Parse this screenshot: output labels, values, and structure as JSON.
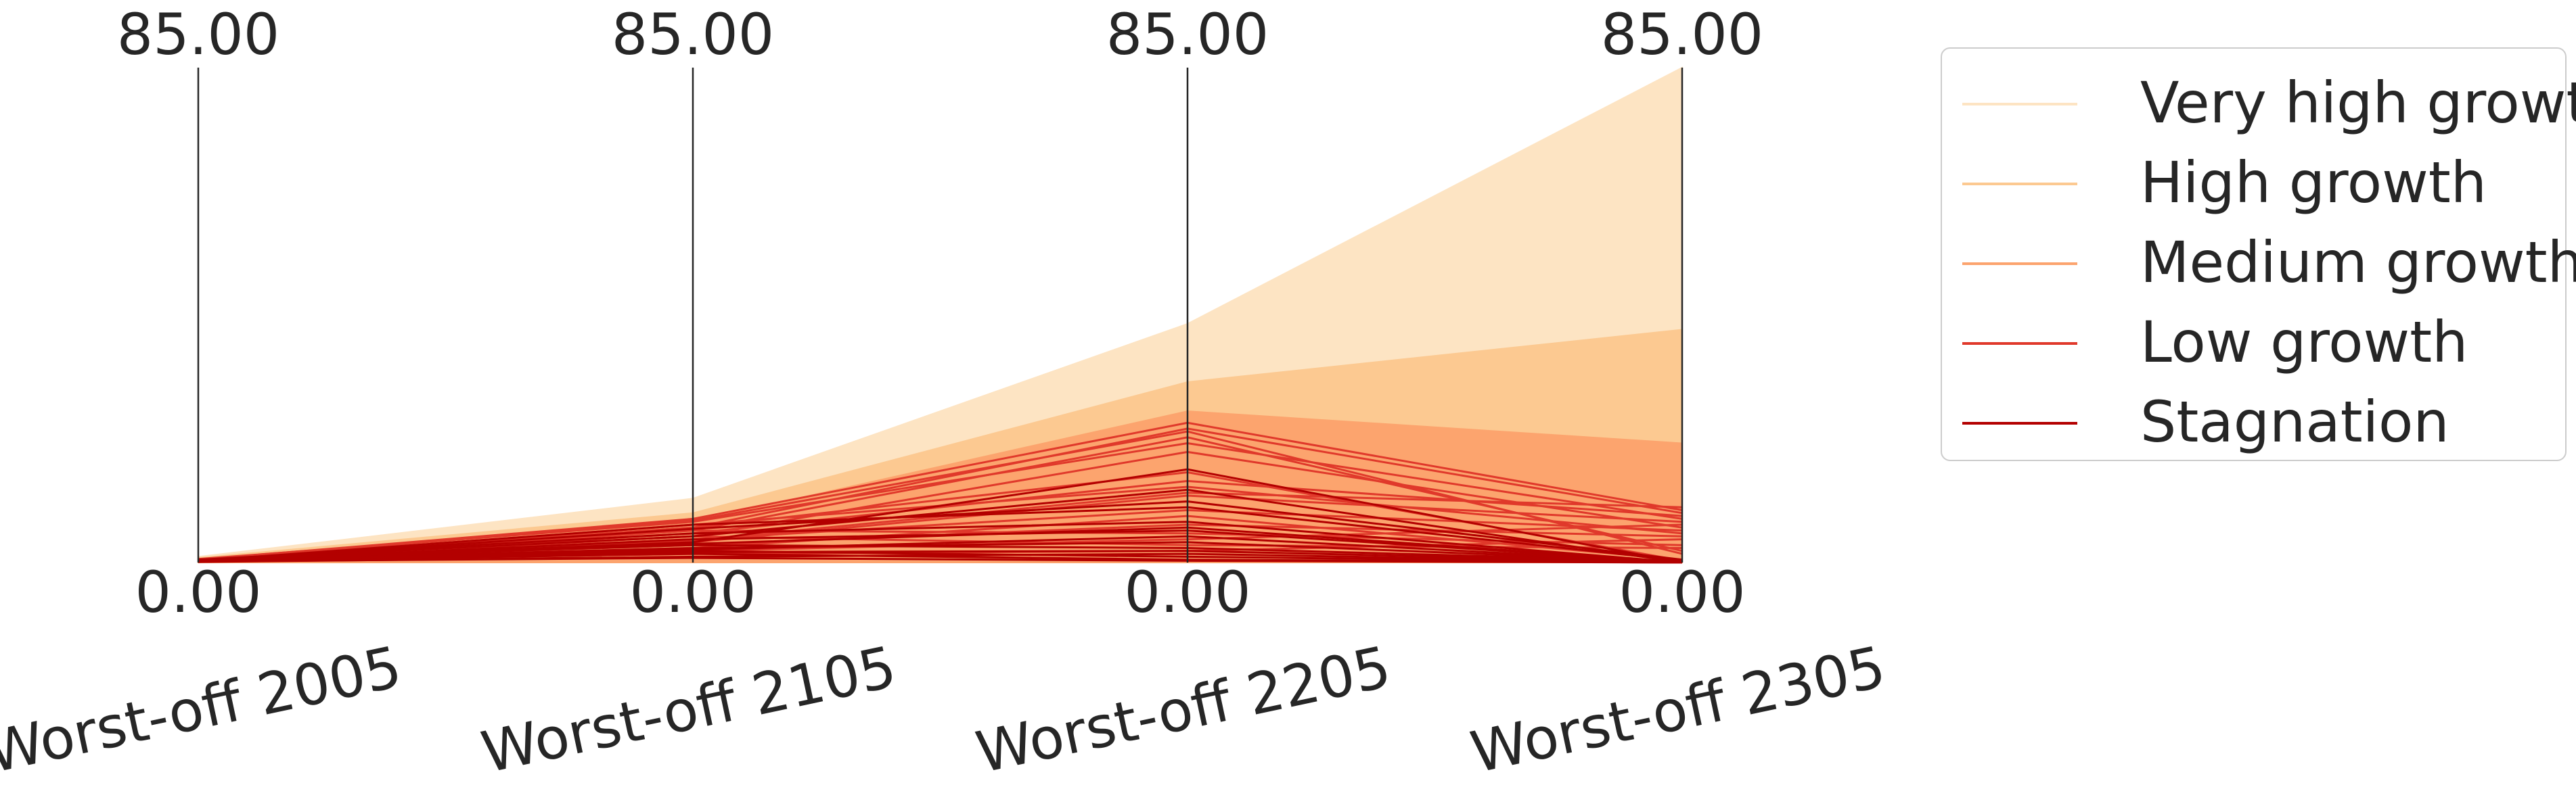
{
  "chart_data": {
    "type": "parallel_coordinates",
    "title": "",
    "axes": [
      {
        "label": "Worst-off 2005",
        "range": [
          0,
          85
        ],
        "top_tick": "85.00",
        "bottom_tick": "0.00"
      },
      {
        "label": "Worst-off 2105",
        "range": [
          0,
          85
        ],
        "top_tick": "85.00",
        "bottom_tick": "0.00"
      },
      {
        "label": "Worst-off 2205",
        "range": [
          0,
          85
        ],
        "top_tick": "85.00",
        "bottom_tick": "0.00"
      },
      {
        "label": "Worst-off 2305",
        "range": [
          0,
          85
        ],
        "top_tick": "85.00",
        "bottom_tick": "0.00"
      }
    ],
    "legend": {
      "placement": "outside-right",
      "entries": [
        {
          "label": "Very high growth",
          "color": "#fde4c3"
        },
        {
          "label": "High growth",
          "color": "#fcc991"
        },
        {
          "label": "Medium growth",
          "color": "#fca46e"
        },
        {
          "label": "Low growth",
          "color": "#e0392b"
        },
        {
          "label": "Stagnation",
          "color": "#b30000"
        }
      ]
    },
    "series": [
      {
        "name": "Very high growth",
        "color": "#fde4c3",
        "band_upper": [
          1.0,
          11.0,
          41.0,
          85.0
        ],
        "band_lower": [
          0,
          0,
          0,
          0
        ]
      },
      {
        "name": "High growth",
        "color": "#fcc991",
        "band_upper": [
          0.8,
          8.5,
          31.0,
          40.0
        ],
        "band_lower": [
          0,
          0,
          0,
          0
        ]
      },
      {
        "name": "Medium growth",
        "color": "#fca46e",
        "band_upper": [
          0.6,
          7.0,
          26.0,
          20.5
        ],
        "band_lower": [
          0,
          0,
          0,
          0
        ]
      },
      {
        "name": "Low growth",
        "color": "#e0392b",
        "lines": [
          [
            0.5,
            7.5,
            24.0,
            9.0
          ],
          [
            0.4,
            6.0,
            23.0,
            8.5
          ],
          [
            0.3,
            5.5,
            21.5,
            2.0
          ],
          [
            0.6,
            7.0,
            20.5,
            7.5
          ],
          [
            0.4,
            4.5,
            19.0,
            6.0
          ],
          [
            0.2,
            5.0,
            14.0,
            8.0
          ],
          [
            0.3,
            6.5,
            13.0,
            5.0
          ],
          [
            0.5,
            3.5,
            11.5,
            7.0
          ],
          [
            0.4,
            4.0,
            9.0,
            5.5
          ],
          [
            0.2,
            2.5,
            8.0,
            0.5
          ],
          [
            0.3,
            3.0,
            6.5,
            4.5
          ],
          [
            0.1,
            5.5,
            5.0,
            3.0
          ],
          [
            0.4,
            2.0,
            4.0,
            6.5
          ],
          [
            0.3,
            4.5,
            3.0,
            2.5
          ],
          [
            0.2,
            1.5,
            2.0,
            4.0
          ],
          [
            0.5,
            6.0,
            15.5,
            0.3
          ],
          [
            0.4,
            7.2,
            22.5,
            1.5
          ],
          [
            0.3,
            3.8,
            12.0,
            9.5
          ]
        ]
      },
      {
        "name": "Stagnation",
        "color": "#b30000",
        "lines": [
          [
            0.3,
            2.0,
            1.0,
            0.0
          ],
          [
            0.2,
            1.5,
            0.5,
            0.0
          ],
          [
            0.4,
            3.0,
            2.5,
            0.2
          ],
          [
            0.1,
            1.0,
            1.5,
            0.0
          ],
          [
            0.3,
            2.5,
            3.5,
            0.1
          ],
          [
            0.2,
            4.0,
            5.5,
            0.0
          ],
          [
            0.5,
            5.0,
            7.0,
            0.0
          ],
          [
            0.3,
            6.5,
            9.5,
            0.3
          ],
          [
            0.4,
            4.5,
            12.5,
            0.0
          ],
          [
            0.2,
            3.5,
            16.0,
            0.0
          ],
          [
            0.3,
            5.8,
            10.5,
            0.5
          ],
          [
            0.1,
            2.2,
            4.5,
            0.0
          ],
          [
            0.2,
            0.8,
            0.3,
            0.0
          ],
          [
            0.4,
            3.2,
            6.0,
            0.0
          ],
          [
            0.3,
            1.8,
            2.0,
            0.1
          ]
        ]
      }
    ]
  }
}
